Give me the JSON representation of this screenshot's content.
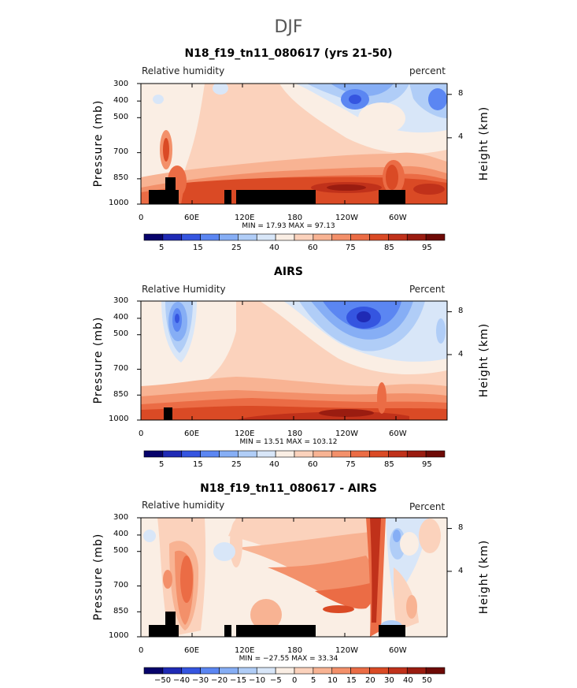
{
  "figure": {
    "title": "DJF"
  },
  "colorbar_colors": [
    "#07036b",
    "#1f2ab5",
    "#3555e0",
    "#5b86f2",
    "#86aef5",
    "#b0cdf7",
    "#d8e6f8",
    "#faeee4",
    "#fbd2bc",
    "#f8b393",
    "#f3906a",
    "#eb6c45",
    "#da4a25",
    "#c0311a",
    "#9a1c10",
    "#6e0a06"
  ],
  "chart_data": [
    {
      "type": "contour",
      "title": "N18_f19_tn11_080617 (yrs 21-50)",
      "left_label": "Relative humidity",
      "right_label": "percent",
      "ylabel": "Pressure (mb)",
      "ylabel_right": "Height (km)",
      "x_ticks": [
        "0",
        "60E",
        "120E",
        "180",
        "120W",
        "60W"
      ],
      "y_ticks": [
        "300",
        "400",
        "500",
        "700",
        "850",
        "1000"
      ],
      "height_ticks": [
        "8",
        "4"
      ],
      "stats": "MIN =   17.93   MAX =   97.13",
      "colorbar_labels": [
        "5",
        "15",
        "25",
        "40",
        "60",
        "75",
        "85",
        "95"
      ],
      "xlim": [
        0,
        360
      ],
      "ylim": [
        1000,
        300
      ]
    },
    {
      "type": "contour",
      "title": "AIRS",
      "left_label": "Relative Humidity",
      "right_label": "Percent",
      "ylabel": "Pressure (mb)",
      "ylabel_right": "Height (km)",
      "x_ticks": [
        "0",
        "60E",
        "120E",
        "180",
        "120W",
        "60W"
      ],
      "y_ticks": [
        "300",
        "400",
        "500",
        "700",
        "850",
        "1000"
      ],
      "height_ticks": [
        "8",
        "4"
      ],
      "stats": "MIN =   13.51   MAX = 103.12",
      "colorbar_labels": [
        "5",
        "15",
        "25",
        "40",
        "60",
        "75",
        "85",
        "95"
      ],
      "xlim": [
        0,
        360
      ],
      "ylim": [
        1000,
        300
      ]
    },
    {
      "type": "contour",
      "title": "N18_f19_tn11_080617 - AIRS",
      "left_label": "Relative humidity",
      "right_label": "Percent",
      "ylabel": "Pressure (mb)",
      "ylabel_right": "Height (km)",
      "x_ticks": [
        "0",
        "60E",
        "120E",
        "180",
        "120W",
        "60W"
      ],
      "y_ticks": [
        "300",
        "400",
        "500",
        "700",
        "850",
        "1000"
      ],
      "height_ticks": [
        "8",
        "4"
      ],
      "stats": "MIN = −27.55   MAX =   33.34",
      "colorbar_labels": [
        "−50",
        "−40",
        "−30",
        "−20",
        "−15",
        "−10",
        "−5",
        "0",
        "5",
        "10",
        "15",
        "20",
        "30",
        "40",
        "50"
      ],
      "xlim": [
        0,
        360
      ],
      "ylim": [
        1000,
        300
      ]
    }
  ]
}
